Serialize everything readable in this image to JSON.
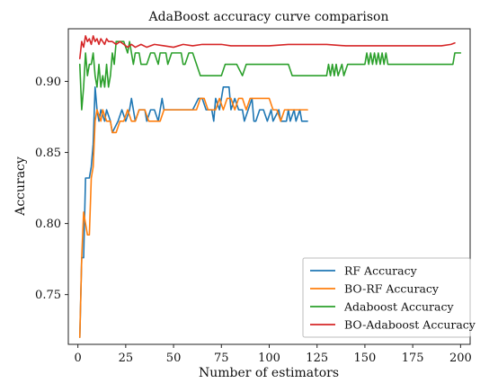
{
  "chart_data": {
    "type": "line",
    "title": "AdaBoost accuracy curve comparison",
    "xlabel": "Number of estimators",
    "ylabel": "Accuracy",
    "xlim": [
      -5,
      205
    ],
    "ylim": [
      0.715,
      0.937
    ],
    "xticks": [
      0,
      25,
      50,
      75,
      100,
      125,
      150,
      175,
      200
    ],
    "yticks": [
      0.75,
      0.8,
      0.85,
      0.9
    ],
    "ytick_labels": [
      "0.75",
      "0.80",
      "0.85",
      "0.90"
    ],
    "legend": {
      "position": "lower-right",
      "box": true
    },
    "grid": false,
    "series": [
      {
        "name": "RF Accuracy",
        "color": "#1f77b4",
        "points": [
          [
            1,
            0.72
          ],
          [
            2,
            0.776
          ],
          [
            3,
            0.776
          ],
          [
            4,
            0.832
          ],
          [
            6,
            0.832
          ],
          [
            7,
            0.84
          ],
          [
            8,
            0.856
          ],
          [
            9,
            0.896
          ],
          [
            10,
            0.88
          ],
          [
            11,
            0.872
          ],
          [
            12,
            0.88
          ],
          [
            14,
            0.872
          ],
          [
            15,
            0.88
          ],
          [
            17,
            0.872
          ],
          [
            18,
            0.864
          ],
          [
            21,
            0.872
          ],
          [
            23,
            0.88
          ],
          [
            25,
            0.872
          ],
          [
            27,
            0.88
          ],
          [
            28,
            0.888
          ],
          [
            30,
            0.872
          ],
          [
            32,
            0.88
          ],
          [
            35,
            0.88
          ],
          [
            36,
            0.872
          ],
          [
            38,
            0.88
          ],
          [
            40,
            0.88
          ],
          [
            42,
            0.872
          ],
          [
            44,
            0.888
          ],
          [
            45,
            0.88
          ],
          [
            47,
            0.88
          ],
          [
            50,
            0.88
          ],
          [
            55,
            0.88
          ],
          [
            60,
            0.88
          ],
          [
            63,
            0.888
          ],
          [
            65,
            0.888
          ],
          [
            67,
            0.88
          ],
          [
            70,
            0.88
          ],
          [
            71,
            0.872
          ],
          [
            72,
            0.888
          ],
          [
            74,
            0.88
          ],
          [
            76,
            0.896
          ],
          [
            79,
            0.896
          ],
          [
            80,
            0.88
          ],
          [
            82,
            0.888
          ],
          [
            84,
            0.88
          ],
          [
            86,
            0.88
          ],
          [
            87,
            0.872
          ],
          [
            89,
            0.88
          ],
          [
            91,
            0.888
          ],
          [
            92,
            0.872
          ],
          [
            93,
            0.872
          ],
          [
            95,
            0.88
          ],
          [
            97,
            0.88
          ],
          [
            99,
            0.872
          ],
          [
            101,
            0.88
          ],
          [
            102,
            0.872
          ],
          [
            105,
            0.88
          ],
          [
            106,
            0.872
          ],
          [
            109,
            0.872
          ],
          [
            110,
            0.88
          ],
          [
            111,
            0.872
          ],
          [
            113,
            0.88
          ],
          [
            114,
            0.872
          ],
          [
            116,
            0.88
          ],
          [
            117,
            0.872
          ],
          [
            120,
            0.872
          ]
        ]
      },
      {
        "name": "BO-RF Accuracy",
        "color": "#ff7f0e",
        "points": [
          [
            1,
            0.72
          ],
          [
            2,
            0.776
          ],
          [
            3,
            0.808
          ],
          [
            4,
            0.8
          ],
          [
            5,
            0.792
          ],
          [
            6,
            0.792
          ],
          [
            7,
            0.832
          ],
          [
            8,
            0.84
          ],
          [
            9,
            0.872
          ],
          [
            10,
            0.88
          ],
          [
            12,
            0.872
          ],
          [
            13,
            0.88
          ],
          [
            15,
            0.872
          ],
          [
            17,
            0.872
          ],
          [
            18,
            0.864
          ],
          [
            20,
            0.864
          ],
          [
            22,
            0.872
          ],
          [
            24,
            0.872
          ],
          [
            26,
            0.88
          ],
          [
            28,
            0.872
          ],
          [
            30,
            0.872
          ],
          [
            32,
            0.88
          ],
          [
            35,
            0.88
          ],
          [
            37,
            0.872
          ],
          [
            40,
            0.872
          ],
          [
            43,
            0.872
          ],
          [
            45,
            0.88
          ],
          [
            48,
            0.88
          ],
          [
            52,
            0.88
          ],
          [
            56,
            0.88
          ],
          [
            60,
            0.88
          ],
          [
            62,
            0.88
          ],
          [
            64,
            0.888
          ],
          [
            66,
            0.888
          ],
          [
            68,
            0.88
          ],
          [
            70,
            0.88
          ],
          [
            72,
            0.88
          ],
          [
            74,
            0.888
          ],
          [
            76,
            0.88
          ],
          [
            78,
            0.888
          ],
          [
            80,
            0.888
          ],
          [
            82,
            0.88
          ],
          [
            84,
            0.888
          ],
          [
            86,
            0.888
          ],
          [
            88,
            0.88
          ],
          [
            90,
            0.888
          ],
          [
            100,
            0.888
          ],
          [
            102,
            0.88
          ],
          [
            104,
            0.88
          ],
          [
            106,
            0.872
          ],
          [
            108,
            0.88
          ],
          [
            110,
            0.88
          ],
          [
            115,
            0.88
          ],
          [
            120,
            0.88
          ]
        ]
      },
      {
        "name": "Adaboost Accuracy",
        "color": "#2ca02c",
        "points": [
          [
            1,
            0.912
          ],
          [
            2,
            0.88
          ],
          [
            3,
            0.896
          ],
          [
            4,
            0.92
          ],
          [
            5,
            0.904
          ],
          [
            6,
            0.912
          ],
          [
            7,
            0.912
          ],
          [
            8,
            0.92
          ],
          [
            9,
            0.904
          ],
          [
            10,
            0.896
          ],
          [
            11,
            0.912
          ],
          [
            12,
            0.896
          ],
          [
            13,
            0.904
          ],
          [
            14,
            0.896
          ],
          [
            15,
            0.912
          ],
          [
            16,
            0.896
          ],
          [
            17,
            0.904
          ],
          [
            18,
            0.92
          ],
          [
            19,
            0.912
          ],
          [
            20,
            0.928
          ],
          [
            22,
            0.928
          ],
          [
            24,
            0.928
          ],
          [
            26,
            0.92
          ],
          [
            27,
            0.928
          ],
          [
            29,
            0.912
          ],
          [
            30,
            0.92
          ],
          [
            32,
            0.92
          ],
          [
            33,
            0.912
          ],
          [
            34,
            0.912
          ],
          [
            36,
            0.912
          ],
          [
            38,
            0.92
          ],
          [
            40,
            0.92
          ],
          [
            42,
            0.912
          ],
          [
            43,
            0.92
          ],
          [
            46,
            0.92
          ],
          [
            47,
            0.912
          ],
          [
            49,
            0.92
          ],
          [
            54,
            0.92
          ],
          [
            55,
            0.912
          ],
          [
            56,
            0.912
          ],
          [
            58,
            0.92
          ],
          [
            60,
            0.92
          ],
          [
            62,
            0.912
          ],
          [
            64,
            0.904
          ],
          [
            75,
            0.904
          ],
          [
            77,
            0.912
          ],
          [
            80,
            0.912
          ],
          [
            83,
            0.912
          ],
          [
            86,
            0.904
          ],
          [
            88,
            0.912
          ],
          [
            110,
            0.912
          ],
          [
            112,
            0.904
          ],
          [
            130,
            0.904
          ],
          [
            131,
            0.912
          ],
          [
            132,
            0.904
          ],
          [
            133,
            0.912
          ],
          [
            134,
            0.904
          ],
          [
            135,
            0.912
          ],
          [
            136,
            0.904
          ],
          [
            138,
            0.912
          ],
          [
            139,
            0.904
          ],
          [
            141,
            0.912
          ],
          [
            150,
            0.912
          ],
          [
            151,
            0.92
          ],
          [
            152,
            0.912
          ],
          [
            153,
            0.92
          ],
          [
            154,
            0.912
          ],
          [
            155,
            0.92
          ],
          [
            156,
            0.912
          ],
          [
            157,
            0.92
          ],
          [
            158,
            0.912
          ],
          [
            159,
            0.92
          ],
          [
            160,
            0.912
          ],
          [
            161,
            0.92
          ],
          [
            162,
            0.912
          ],
          [
            170,
            0.912
          ],
          [
            196,
            0.912
          ],
          [
            197,
            0.92
          ],
          [
            200,
            0.92
          ]
        ]
      },
      {
        "name": "BO-Adaboost Accuracy",
        "color": "#d62728",
        "points": [
          [
            1,
            0.916
          ],
          [
            2,
            0.928
          ],
          [
            3,
            0.924
          ],
          [
            4,
            0.932
          ],
          [
            5,
            0.928
          ],
          [
            6,
            0.93
          ],
          [
            7,
            0.926
          ],
          [
            8,
            0.932
          ],
          [
            9,
            0.928
          ],
          [
            10,
            0.93
          ],
          [
            11,
            0.926
          ],
          [
            12,
            0.93
          ],
          [
            13,
            0.928
          ],
          [
            14,
            0.926
          ],
          [
            15,
            0.93
          ],
          [
            16,
            0.928
          ],
          [
            18,
            0.928
          ],
          [
            20,
            0.926
          ],
          [
            22,
            0.928
          ],
          [
            24,
            0.926
          ],
          [
            26,
            0.924
          ],
          [
            28,
            0.926
          ],
          [
            30,
            0.924
          ],
          [
            33,
            0.926
          ],
          [
            36,
            0.924
          ],
          [
            40,
            0.926
          ],
          [
            45,
            0.925
          ],
          [
            50,
            0.924
          ],
          [
            55,
            0.926
          ],
          [
            60,
            0.925
          ],
          [
            65,
            0.926
          ],
          [
            70,
            0.926
          ],
          [
            75,
            0.926
          ],
          [
            80,
            0.925
          ],
          [
            90,
            0.925
          ],
          [
            100,
            0.925
          ],
          [
            110,
            0.926
          ],
          [
            120,
            0.926
          ],
          [
            130,
            0.926
          ],
          [
            140,
            0.925
          ],
          [
            150,
            0.925
          ],
          [
            160,
            0.925
          ],
          [
            170,
            0.925
          ],
          [
            180,
            0.925
          ],
          [
            190,
            0.925
          ],
          [
            195,
            0.926
          ],
          [
            197,
            0.927
          ]
        ]
      }
    ]
  }
}
